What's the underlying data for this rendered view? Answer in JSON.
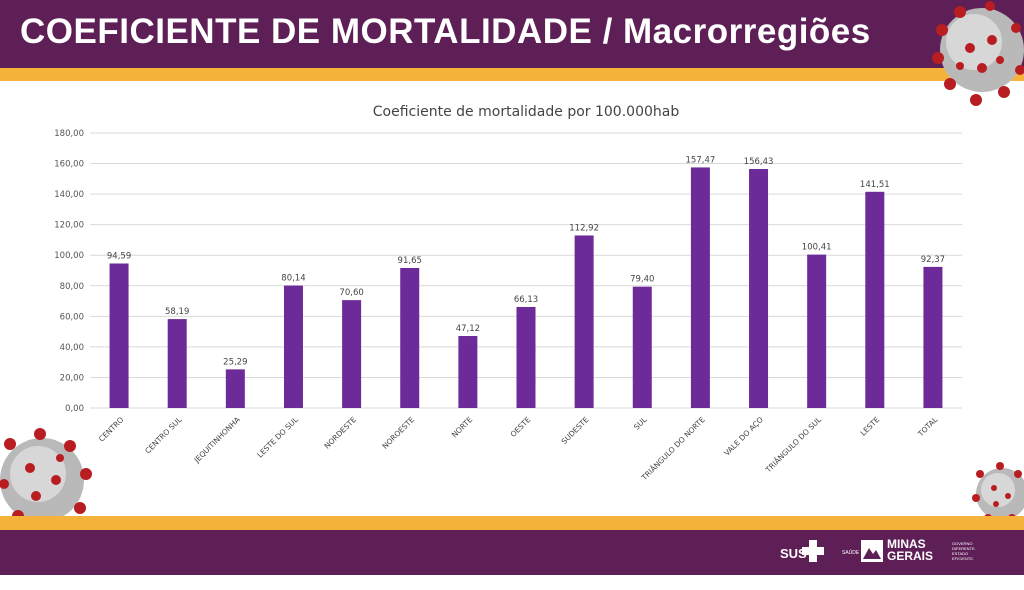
{
  "header": {
    "title": "COEFICIENTE DE MORTALIDADE / Macrorregiões"
  },
  "chart_data": {
    "type": "bar",
    "title": "Coeficiente de mortalidade por 100.000hab",
    "xlabel": "",
    "ylabel": "",
    "ylim": [
      0,
      180
    ],
    "yticks": [
      "0,00",
      "20,00",
      "40,00",
      "60,00",
      "80,00",
      "100,00",
      "120,00",
      "140,00",
      "160,00",
      "180,00"
    ],
    "grid": true,
    "legend": "none",
    "bar_color": "#6d2a99",
    "categories": [
      "CENTRO",
      "CENTRO SUL",
      "JEQUITINHONHA",
      "LESTE DO SUL",
      "NORDESTE",
      "NOROESTE",
      "NORTE",
      "OESTE",
      "SUDESTE",
      "SUL",
      "TRIÂNGULO DO NORTE",
      "VALE DO AÇO",
      "TRIÂNGULO DO SUL",
      "LESTE",
      "TOTAL"
    ],
    "values": [
      94.59,
      58.19,
      25.29,
      80.14,
      70.6,
      91.65,
      47.12,
      66.13,
      112.92,
      79.4,
      157.47,
      156.43,
      100.41,
      141.51,
      92.37
    ],
    "value_labels": [
      "94,59",
      "58,19",
      "25,29",
      "80,14",
      "70,60",
      "91,65",
      "47,12",
      "66,13",
      "112,92",
      "79,40",
      "157,47",
      "156,43",
      "100,41",
      "141,51",
      "92,37"
    ]
  },
  "footer": {
    "sus_label": "SUS",
    "saude_label": "SAÚDE",
    "mg_line1": "MINAS",
    "mg_line2": "GERAIS",
    "gov_line1": "GOVERNO",
    "gov_line2": "DIFERENTE.",
    "gov_line3": "ESTADO",
    "gov_line4": "EFICIENTE."
  },
  "colors": {
    "purple": "#5e1f56",
    "orange": "#f6b33b",
    "bar": "#6d2a99",
    "virus_red": "#b81d22"
  }
}
